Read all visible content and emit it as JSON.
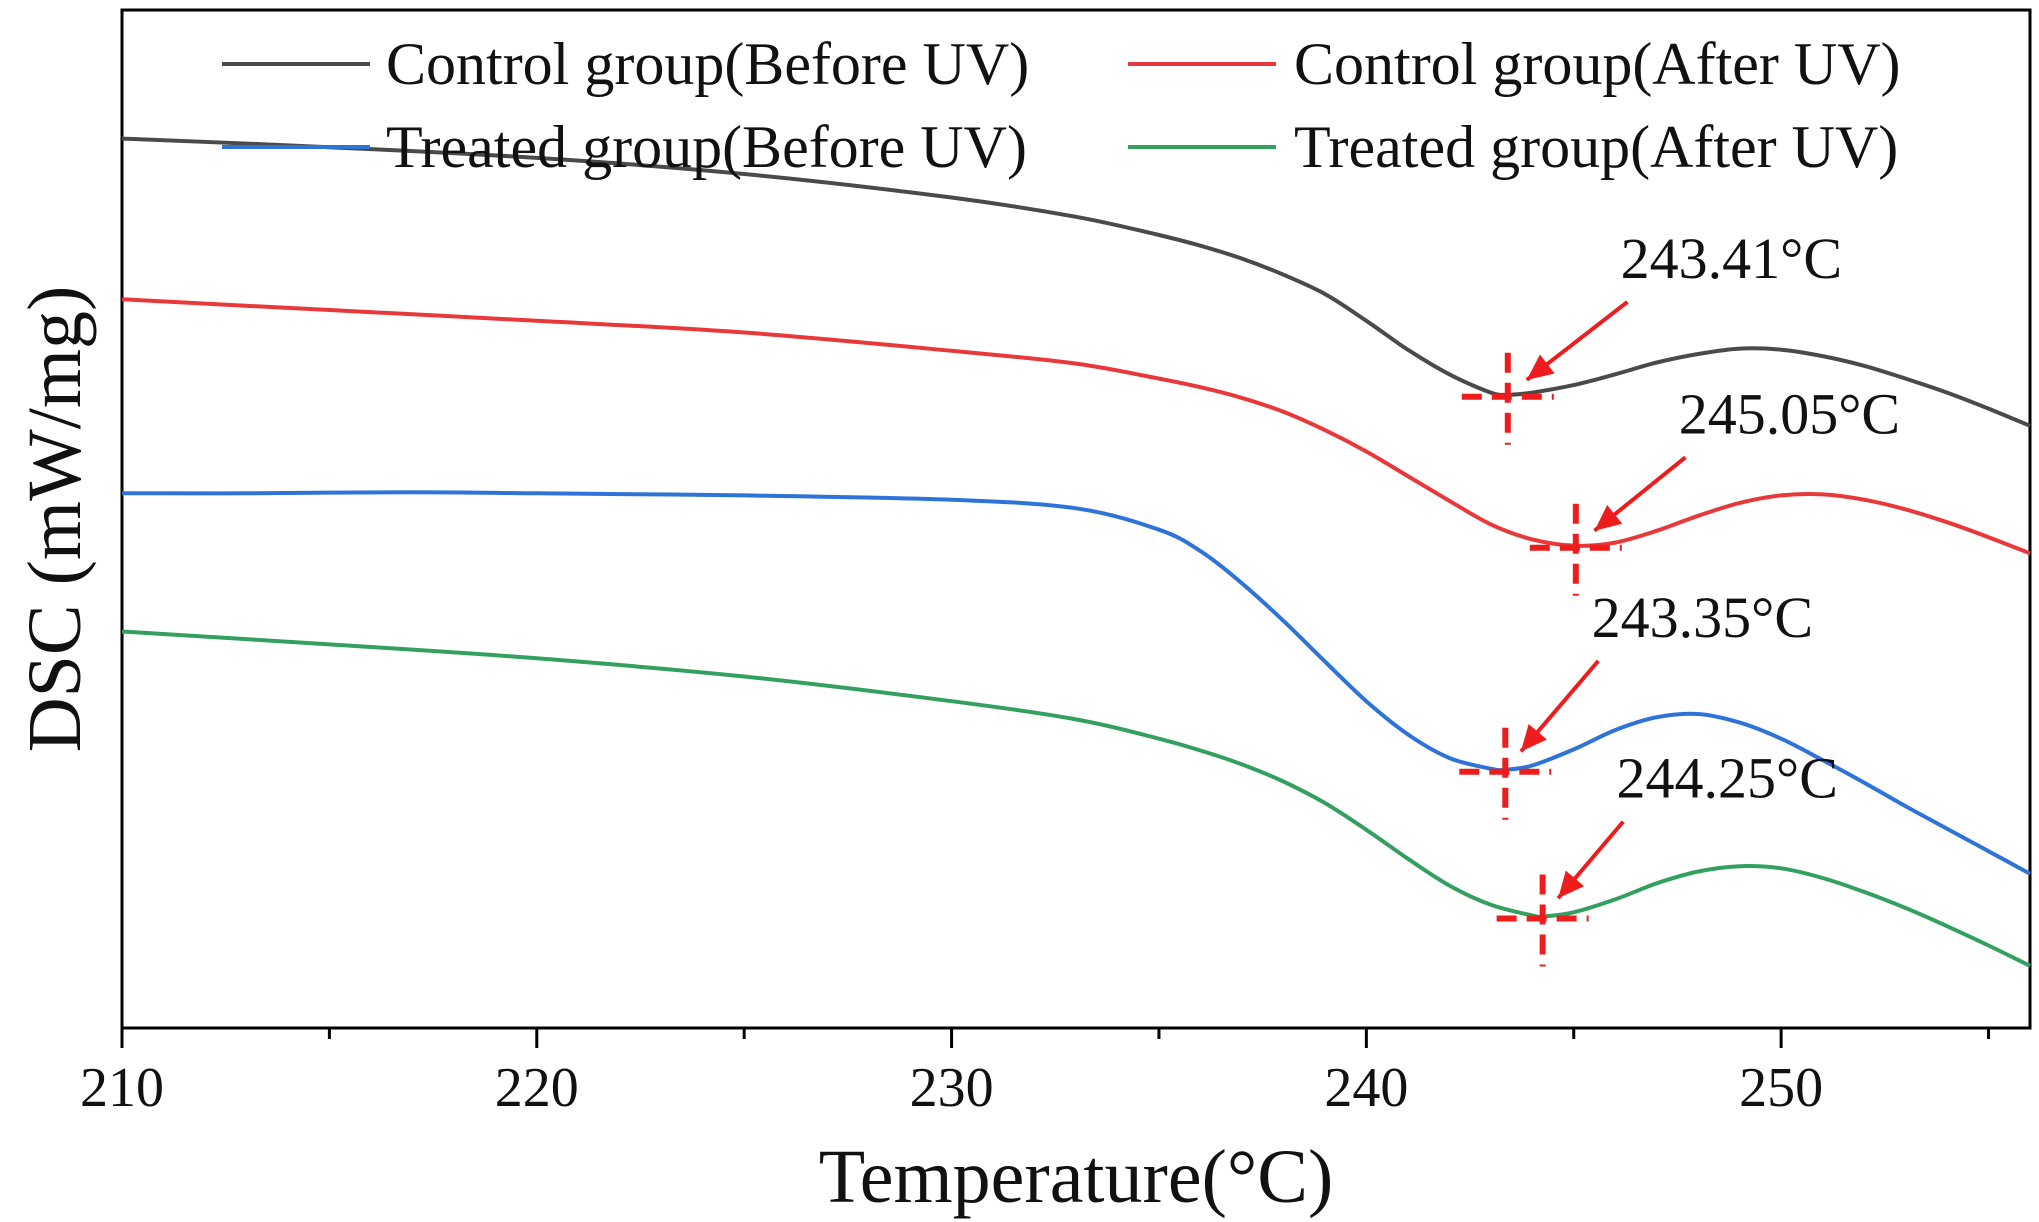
{
  "chart_data": {
    "type": "line",
    "title": "",
    "xlabel": "Temperature(°C)",
    "ylabel": "DSC (mW/mg)",
    "xlim": [
      210,
      256
    ],
    "ylim": [
      -8.3,
      1.2
    ],
    "x_ticks": [
      210,
      220,
      230,
      240,
      250
    ],
    "y_ticks_shown": false,
    "grid": false,
    "legend": {
      "placement": "top",
      "columns": 2,
      "entries": [
        "Control group(Before UV)",
        "Control group(After UV)",
        "Treated group(Before UV)",
        "Treated group(After UV)"
      ]
    },
    "colors": {
      "axis": "#000000",
      "marker": "#ee1c1c"
    },
    "series": [
      {
        "name": "Control group(Before UV)",
        "color": "#4a4a4a",
        "x": [
          210,
          215,
          220,
          225,
          230,
          233,
          235,
          236,
          237,
          238,
          239,
          240,
          241,
          242,
          243,
          243.41,
          244,
          245,
          246,
          247,
          248,
          249,
          250,
          251,
          252,
          253,
          254,
          255,
          256
        ],
        "y": [
          0,
          -0.08,
          -0.18,
          -0.33,
          -0.55,
          -0.73,
          -0.9,
          -1.0,
          -1.12,
          -1.27,
          -1.45,
          -1.7,
          -1.97,
          -2.2,
          -2.37,
          -2.39,
          -2.37,
          -2.3,
          -2.2,
          -2.09,
          -2.01,
          -1.96,
          -1.97,
          -2.03,
          -2.12,
          -2.24,
          -2.37,
          -2.52,
          -2.68
        ]
      },
      {
        "name": "Control group(After UV)",
        "color": "#e8383a",
        "x": [
          210,
          215,
          220,
          225,
          230,
          233,
          235,
          236,
          237,
          238,
          239,
          240,
          241,
          242,
          243,
          244,
          245.05,
          246,
          247,
          248,
          249,
          250,
          251,
          252,
          253,
          254,
          255,
          256
        ],
        "y": [
          -1.5,
          -1.6,
          -1.7,
          -1.81,
          -1.98,
          -2.1,
          -2.24,
          -2.32,
          -2.42,
          -2.55,
          -2.72,
          -2.92,
          -3.15,
          -3.38,
          -3.6,
          -3.74,
          -3.8,
          -3.77,
          -3.66,
          -3.52,
          -3.4,
          -3.33,
          -3.32,
          -3.37,
          -3.46,
          -3.58,
          -3.72,
          -3.87
        ]
      },
      {
        "name": "Treated group(Before UV)",
        "color": "#2e74d8",
        "x": [
          210,
          213,
          217,
          220,
          225,
          230,
          233,
          235,
          236,
          237,
          238,
          239,
          240,
          241,
          242,
          243,
          243.35,
          244,
          245,
          246,
          247,
          248,
          249,
          250,
          251,
          252,
          253,
          254,
          255,
          256
        ],
        "y": [
          -3.31,
          -3.31,
          -3.3,
          -3.31,
          -3.33,
          -3.37,
          -3.45,
          -3.65,
          -3.85,
          -4.15,
          -4.5,
          -4.88,
          -5.25,
          -5.56,
          -5.78,
          -5.88,
          -5.89,
          -5.85,
          -5.7,
          -5.52,
          -5.4,
          -5.37,
          -5.45,
          -5.6,
          -5.8,
          -6.01,
          -6.23,
          -6.44,
          -6.65,
          -6.86
        ]
      },
      {
        "name": "Treated group(After UV)",
        "color": "#33a060",
        "x": [
          210,
          215,
          220,
          225,
          230,
          233,
          235,
          236,
          237,
          238,
          239,
          240,
          241,
          242,
          243,
          244,
          244.25,
          245,
          246,
          247,
          248,
          249,
          250,
          251,
          252,
          253,
          254,
          255,
          256
        ],
        "y": [
          -4.6,
          -4.72,
          -4.85,
          -5.02,
          -5.25,
          -5.42,
          -5.6,
          -5.71,
          -5.84,
          -6.0,
          -6.2,
          -6.45,
          -6.72,
          -6.97,
          -7.15,
          -7.25,
          -7.26,
          -7.22,
          -7.1,
          -6.95,
          -6.84,
          -6.79,
          -6.81,
          -6.9,
          -7.03,
          -7.18,
          -7.35,
          -7.53,
          -7.72
        ]
      }
    ],
    "annotations": [
      {
        "label": "243.41°C",
        "series": 0,
        "x": 243.41,
        "y": -2.39,
        "label_x": 248.8,
        "label_y": -1.3
      },
      {
        "label": "245.05°C",
        "series": 1,
        "x": 245.05,
        "y": -3.8,
        "label_x": 250.2,
        "label_y": -2.75
      },
      {
        "label": "243.35°C",
        "series": 2,
        "x": 243.35,
        "y": -5.89,
        "label_x": 248.1,
        "label_y": -4.65
      },
      {
        "label": "244.25°C",
        "series": 3,
        "x": 244.25,
        "y": -7.26,
        "label_x": 248.7,
        "label_y": -6.15
      }
    ]
  }
}
